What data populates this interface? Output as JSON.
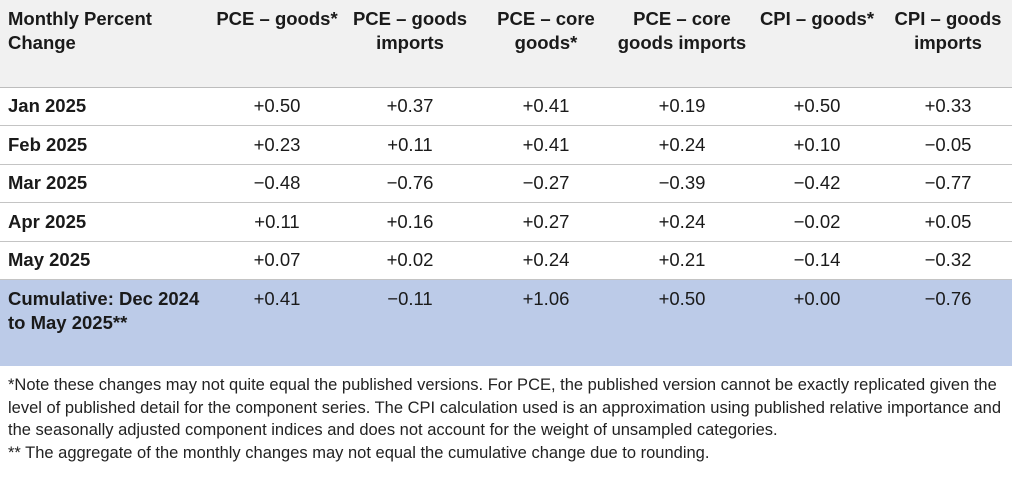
{
  "table": {
    "headers": [
      "Monthly Percent Change",
      "PCE – goods*",
      "PCE – goods imports",
      "PCE – core goods*",
      "PCE – core goods imports",
      "CPI – goods*",
      "CPI – goods imports"
    ],
    "rows": [
      {
        "label": "Jan 2025",
        "values": [
          "+0.50",
          "+0.37",
          "+0.41",
          "+0.19",
          "+0.50",
          "+0.33"
        ]
      },
      {
        "label": "Feb 2025",
        "values": [
          "+0.23",
          "+0.11",
          "+0.41",
          "+0.24",
          "+0.10",
          "−0.05"
        ]
      },
      {
        "label": "Mar 2025",
        "values": [
          "−0.48",
          "−0.76",
          "−0.27",
          "−0.39",
          "−0.42",
          "−0.77"
        ]
      },
      {
        "label": "Apr 2025",
        "values": [
          "+0.11",
          "+0.16",
          "+0.27",
          "+0.24",
          "−0.02",
          "+0.05"
        ]
      },
      {
        "label": "May 2025",
        "values": [
          "+0.07",
          "+0.02",
          "+0.24",
          "+0.21",
          "−0.14",
          "−0.32"
        ]
      }
    ],
    "cumulative": {
      "label": "Cumulative: Dec 2024 to May 2025**",
      "values": [
        "+0.41",
        "−0.11",
        "+1.06",
        "+0.50",
        "+0.00",
        "−0.76"
      ]
    }
  },
  "notes": {
    "note1": "*Note these changes may not quite equal the published versions. For PCE, the published version cannot be exactly replicated given the level of published detail for the component series. The CPI calculation used is an approximation using published relative importance and the seasonally adjusted component indices and does not account for the weight of unsampled categories.",
    "note2": "** The aggregate of the monthly changes may not equal the cumulative change due to rounding."
  },
  "colors": {
    "header_bg": "#f1f1f1",
    "cumulative_bg": "#bccbe8",
    "row_border": "#c4c4c4"
  }
}
